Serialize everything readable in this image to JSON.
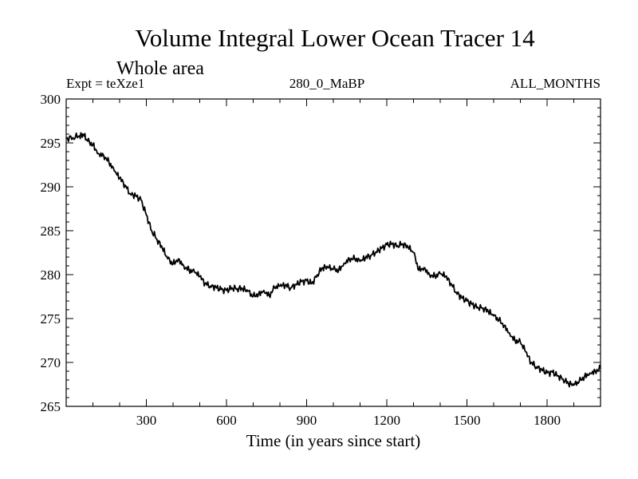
{
  "chart_data": {
    "type": "line",
    "title": "Volume Integral Lower Ocean Tracer 14",
    "subtitle": "Whole area",
    "left_label": "Expt = teXze1",
    "center_label": "280_0_MaBP",
    "right_label": "ALL_MONTHS",
    "xlabel": "Time (in years since start)",
    "ylabel": "",
    "xlim": [
      0,
      2000
    ],
    "ylim": [
      265,
      300
    ],
    "x_ticks": [
      300,
      600,
      900,
      1200,
      1500,
      1800
    ],
    "x_tick_labels": [
      "300",
      "600",
      "900",
      "1200",
      "1500",
      "1800"
    ],
    "y_ticks": [
      265,
      270,
      275,
      280,
      285,
      290,
      295,
      300
    ],
    "y_tick_labels": [
      "265",
      "270",
      "275",
      "280",
      "285",
      "290",
      "295",
      "300"
    ],
    "grid": false,
    "series": [
      {
        "name": "Lower Ocean Tracer 14",
        "x": [
          0,
          25,
          50,
          65,
          80,
          100,
          120,
          140,
          160,
          180,
          200,
          220,
          240,
          260,
          280,
          300,
          320,
          340,
          360,
          380,
          400,
          420,
          440,
          460,
          480,
          500,
          520,
          540,
          560,
          580,
          600,
          620,
          640,
          660,
          680,
          700,
          720,
          740,
          760,
          780,
          800,
          820,
          840,
          860,
          880,
          900,
          920,
          940,
          960,
          980,
          1000,
          1020,
          1040,
          1060,
          1080,
          1100,
          1120,
          1140,
          1160,
          1180,
          1200,
          1220,
          1240,
          1260,
          1280,
          1300,
          1320,
          1340,
          1360,
          1380,
          1400,
          1420,
          1440,
          1460,
          1480,
          1500,
          1520,
          1540,
          1560,
          1580,
          1600,
          1620,
          1640,
          1660,
          1680,
          1700,
          1720,
          1740,
          1760,
          1780,
          1800,
          1820,
          1840,
          1860,
          1880,
          1900,
          1920,
          1940,
          1960,
          1980,
          2000
        ],
        "values": [
          295.5,
          295.6,
          295.8,
          295.9,
          295.2,
          294.8,
          293.8,
          293.6,
          292.8,
          291.8,
          291.0,
          290.2,
          289.2,
          289.0,
          288.5,
          286.8,
          285.0,
          284.0,
          283.0,
          281.8,
          281.2,
          281.8,
          281.0,
          280.5,
          280.3,
          279.8,
          279.0,
          278.7,
          278.6,
          278.3,
          278.2,
          278.5,
          278.4,
          278.4,
          278.1,
          277.5,
          277.8,
          278.2,
          277.6,
          278.5,
          278.7,
          278.8,
          278.5,
          278.9,
          279.2,
          279.3,
          279.0,
          280.0,
          280.8,
          280.8,
          280.6,
          280.5,
          281.3,
          281.8,
          281.8,
          281.5,
          281.9,
          282.2,
          282.6,
          283.0,
          283.4,
          283.5,
          283.3,
          283.5,
          283.1,
          282.5,
          280.5,
          280.8,
          280.0,
          279.8,
          280.1,
          279.8,
          279.0,
          278.0,
          277.4,
          277.0,
          276.6,
          276.3,
          276.2,
          275.8,
          275.3,
          274.8,
          274.2,
          273.3,
          272.5,
          272.3,
          271.2,
          270.0,
          269.5,
          269.2,
          268.8,
          268.9,
          268.5,
          268.1,
          267.6,
          267.4,
          267.8,
          268.4,
          268.8,
          269.0,
          269.3
        ]
      }
    ],
    "line_color": "#000000"
  }
}
